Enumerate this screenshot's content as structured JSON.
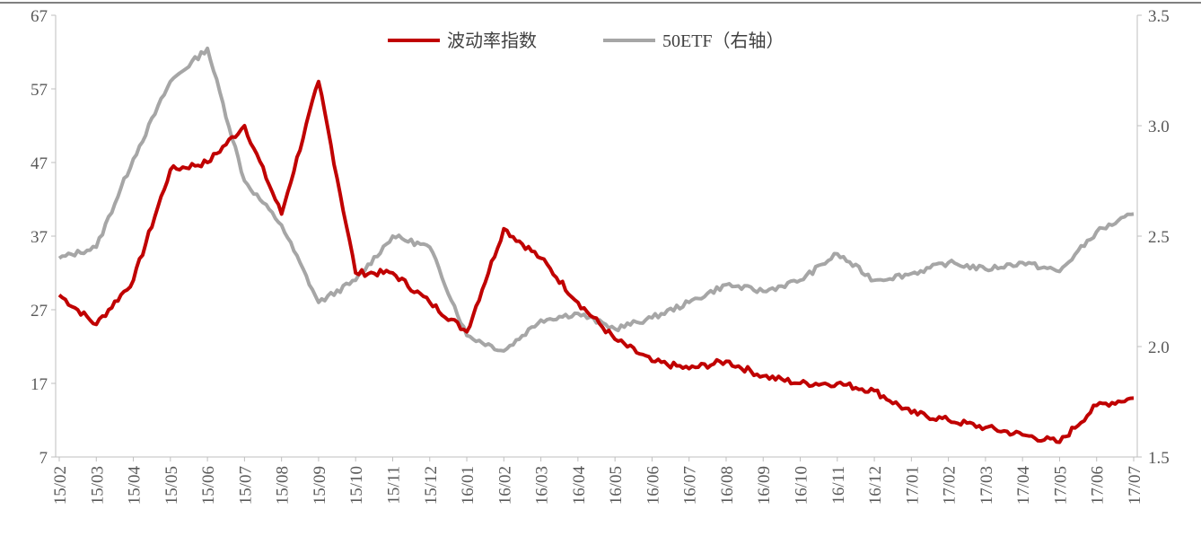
{
  "chart_data": {
    "type": "line",
    "x": [
      "15/02",
      "15/03",
      "15/04",
      "15/05",
      "15/06",
      "15/07",
      "15/08",
      "15/09",
      "15/10",
      "15/11",
      "15/12",
      "16/01",
      "16/02",
      "16/03",
      "16/04",
      "16/05",
      "16/06",
      "16/07",
      "16/08",
      "16/09",
      "16/10",
      "16/11",
      "16/12",
      "17/01",
      "17/02",
      "17/03",
      "17/04",
      "17/05",
      "17/06",
      "17/07"
    ],
    "x_ticks": [
      "15/02",
      "15/03",
      "15/04",
      "15/05",
      "15/06",
      "15/07",
      "15/08",
      "15/09",
      "15/10",
      "15/11",
      "15/12",
      "16/01",
      "16/02",
      "16/03",
      "16/04",
      "16/05",
      "16/06",
      "16/07",
      "16/08",
      "16/09",
      "16/10",
      "16/11",
      "16/12",
      "17/01",
      "17/02",
      "17/03",
      "17/04",
      "17/05",
      "17/06",
      "17/07"
    ],
    "y_left": {
      "ylim": [
        7,
        67
      ],
      "ticks": [
        "7",
        "17",
        "27",
        "37",
        "47",
        "57",
        "67"
      ]
    },
    "y_right": {
      "ylim": [
        1.5,
        3.5
      ],
      "ticks": [
        "1.5",
        "2.0",
        "2.5",
        "3.0",
        "3.5"
      ]
    },
    "grid": false,
    "legend_position": "top-center",
    "series": [
      {
        "name": "波动率指数",
        "axis": "left",
        "color": "#c00000",
        "values": [
          29,
          25,
          31,
          46,
          47,
          52,
          40,
          58,
          32,
          32,
          28,
          24,
          38,
          34,
          28,
          23,
          20,
          19,
          20,
          18,
          17,
          17,
          16,
          13,
          12,
          11,
          10,
          9,
          14,
          15
        ]
      },
      {
        "name": "50ETF（右轴）",
        "axis": "right",
        "color": "#a6a6a6",
        "values": [
          2.4,
          2.45,
          2.85,
          3.2,
          3.35,
          2.75,
          2.55,
          2.2,
          2.3,
          2.5,
          2.45,
          2.05,
          1.98,
          2.12,
          2.15,
          2.08,
          2.13,
          2.2,
          2.28,
          2.25,
          2.3,
          2.42,
          2.3,
          2.33,
          2.38,
          2.35,
          2.38,
          2.34,
          2.52,
          2.6
        ]
      }
    ]
  }
}
